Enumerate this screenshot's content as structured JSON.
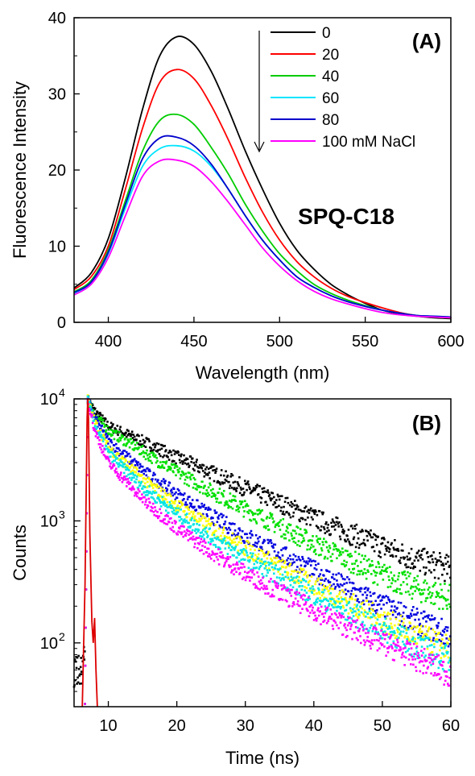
{
  "chart_data": [
    {
      "type": "line",
      "panel_label": "(A)",
      "annotation": "SPQ-C18",
      "xlabel": "Wavelength (nm)",
      "ylabel": "Fluorescence Intensity",
      "xlim": [
        380,
        600
      ],
      "ylim": [
        0,
        40
      ],
      "xticks": [
        400,
        450,
        500,
        550,
        600
      ],
      "yticks": [
        0,
        10,
        20,
        30,
        40
      ],
      "legend_position": "top-right",
      "arrow": "downward arrow beside legend",
      "x": [
        380,
        390,
        400,
        410,
        420,
        430,
        440,
        450,
        460,
        470,
        480,
        490,
        500,
        510,
        520,
        530,
        540,
        550,
        560,
        570,
        580,
        590,
        600
      ],
      "series": [
        {
          "name": "0",
          "color": "#000000",
          "values": [
            4.5,
            6.5,
            11.0,
            19.0,
            28.0,
            35.0,
            37.5,
            36.5,
            33.0,
            28.0,
            22.5,
            17.5,
            13.0,
            9.5,
            7.0,
            5.0,
            3.6,
            2.5,
            1.6,
            1.1,
            0.8,
            0.6,
            0.5
          ]
        },
        {
          "name": "20",
          "color": "#ff0000",
          "values": [
            4.3,
            6.0,
            10.0,
            17.5,
            25.5,
            31.5,
            33.2,
            32.0,
            28.5,
            24.0,
            19.0,
            14.5,
            10.8,
            8.0,
            6.0,
            4.5,
            3.4,
            2.6,
            1.9,
            1.3,
            0.9,
            0.7,
            0.6
          ]
        },
        {
          "name": "40",
          "color": "#00cc00",
          "values": [
            4.0,
            5.5,
            9.5,
            16.0,
            22.5,
            26.5,
            27.3,
            26.0,
            23.0,
            19.5,
            15.5,
            12.0,
            9.0,
            6.8,
            5.0,
            3.8,
            2.9,
            2.2,
            1.6,
            1.2,
            0.9,
            0.7,
            0.6
          ]
        },
        {
          "name": "60",
          "color": "#00e5ff",
          "values": [
            3.8,
            5.2,
            9.0,
            15.0,
            20.5,
            22.8,
            23.2,
            22.5,
            20.5,
            17.5,
            14.0,
            10.8,
            8.2,
            6.0,
            4.6,
            3.5,
            2.7,
            2.1,
            1.6,
            1.2,
            0.9,
            0.8,
            0.7
          ]
        },
        {
          "name": "80",
          "color": "#0000cc",
          "values": [
            3.9,
            5.3,
            9.2,
            15.5,
            21.5,
            24.2,
            24.3,
            23.2,
            20.8,
            17.5,
            14.0,
            10.8,
            8.2,
            6.0,
            4.6,
            3.5,
            2.7,
            2.1,
            1.6,
            1.2,
            0.9,
            0.8,
            0.7
          ]
        },
        {
          "name": "100 mM NaCl",
          "color": "#ff00ff",
          "values": [
            3.6,
            5.0,
            8.5,
            14.0,
            19.2,
            21.2,
            21.3,
            20.5,
            18.5,
            15.8,
            12.8,
            9.8,
            7.4,
            5.5,
            4.1,
            3.1,
            2.4,
            1.8,
            1.3,
            1.0,
            0.8,
            0.7,
            0.6
          ]
        }
      ]
    },
    {
      "type": "scatter",
      "panel_label": "(B)",
      "xlabel": "Time (ns)",
      "ylabel": "Counts",
      "xlim": [
        5,
        60
      ],
      "ylim": [
        30,
        10000
      ],
      "yscale": "log",
      "xticks": [
        10,
        20,
        30,
        40,
        50,
        60
      ],
      "yticks": [
        {
          "value": 100,
          "base": "10",
          "exp": "2"
        },
        {
          "value": 1000,
          "base": "10",
          "exp": "3"
        },
        {
          "value": 10000,
          "base": "10",
          "exp": "4"
        }
      ],
      "x": [
        7,
        8,
        10,
        15,
        20,
        25,
        30,
        35,
        40,
        45,
        50,
        55,
        60
      ],
      "series": [
        {
          "color": "#000000",
          "values": [
            10000,
            8000,
            6000,
            4500,
            3300,
            2500,
            1850,
            1400,
            1050,
            800,
            620,
            480,
            400
          ]
        },
        {
          "color": "#00e000",
          "values": [
            10000,
            7500,
            5500,
            3700,
            2500,
            1750,
            1250,
            900,
            650,
            480,
            360,
            280,
            230
          ]
        },
        {
          "color": "#0000e0",
          "values": [
            10000,
            7000,
            4500,
            2600,
            1650,
            1100,
            760,
            540,
            390,
            280,
            200,
            150,
            115
          ]
        },
        {
          "color": "#ffff00",
          "values": [
            10000,
            6500,
            4000,
            2200,
            1350,
            880,
            600,
            420,
            300,
            215,
            155,
            115,
            88
          ]
        },
        {
          "color": "#00e5e5",
          "values": [
            10000,
            6200,
            3600,
            1900,
            1150,
            740,
            500,
            350,
            250,
            180,
            130,
            95,
            72
          ]
        },
        {
          "color": "#ff00ff",
          "values": [
            10000,
            5500,
            3000,
            1500,
            870,
            560,
            370,
            260,
            185,
            135,
            100,
            75,
            55
          ]
        }
      ],
      "irf": {
        "color": "#dd0000",
        "x": [
          6.2,
          6.6,
          6.9,
          7.0,
          7.1,
          7.3,
          7.6,
          7.8,
          8.0,
          8.2,
          8.4
        ],
        "values": [
          30,
          300,
          7000,
          10000,
          7000,
          800,
          150,
          100,
          160,
          60,
          30
        ]
      },
      "early_background": {
        "color": "#000000",
        "x": [
          5.0,
          5.5,
          6.0,
          6.3,
          6.6
        ],
        "values": [
          55,
          60,
          58,
          65,
          80
        ]
      }
    }
  ]
}
